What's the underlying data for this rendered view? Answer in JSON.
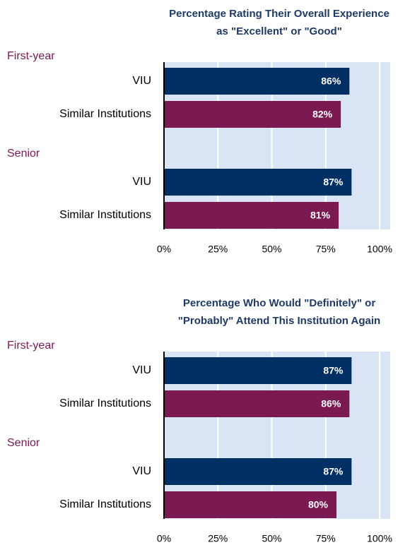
{
  "chart_data": [
    {
      "type": "bar",
      "orientation": "horizontal",
      "title": [
        "Percentage Rating Their Overall Experience",
        "as \"Excellent\" or \"Good\""
      ],
      "groups": [
        {
          "name": "First-year",
          "categories": [
            "VIU",
            "Similar Institutions"
          ],
          "values": [
            86,
            82
          ],
          "value_labels": [
            "86%",
            "82%"
          ]
        },
        {
          "name": "Senior",
          "categories": [
            "VIU",
            "Similar Institutions"
          ],
          "values": [
            87,
            81
          ],
          "value_labels": [
            "87%",
            "81%"
          ]
        }
      ],
      "colors": [
        "#002f63",
        "#7b1a52"
      ],
      "xlim": [
        0,
        100
      ],
      "xticks": [
        {
          "value": 0,
          "label": "0%"
        },
        {
          "value": 25,
          "label": "25%"
        },
        {
          "value": 50,
          "label": "50%"
        },
        {
          "value": 75,
          "label": "75%"
        },
        {
          "value": 100,
          "label": "100%"
        }
      ],
      "grid": true
    },
    {
      "type": "bar",
      "orientation": "horizontal",
      "title": [
        "Percentage Who Would \"Definitely\" or",
        "\"Probably\" Attend This Institution Again"
      ],
      "groups": [
        {
          "name": "First-year",
          "categories": [
            "VIU",
            "Similar Institutions"
          ],
          "values": [
            87,
            86
          ],
          "value_labels": [
            "87%",
            "86%"
          ]
        },
        {
          "name": "Senior",
          "categories": [
            "VIU",
            "Similar Institutions"
          ],
          "values": [
            87,
            80
          ],
          "value_labels": [
            "87%",
            "80%"
          ]
        }
      ],
      "colors": [
        "#002f63",
        "#7b1a52"
      ],
      "xlim": [
        0,
        100
      ],
      "xticks": [
        {
          "value": 0,
          "label": "0%"
        },
        {
          "value": 25,
          "label": "25%"
        },
        {
          "value": 50,
          "label": "50%"
        },
        {
          "value": 75,
          "label": "75%"
        },
        {
          "value": 100,
          "label": "100%"
        }
      ],
      "grid": true
    }
  ]
}
